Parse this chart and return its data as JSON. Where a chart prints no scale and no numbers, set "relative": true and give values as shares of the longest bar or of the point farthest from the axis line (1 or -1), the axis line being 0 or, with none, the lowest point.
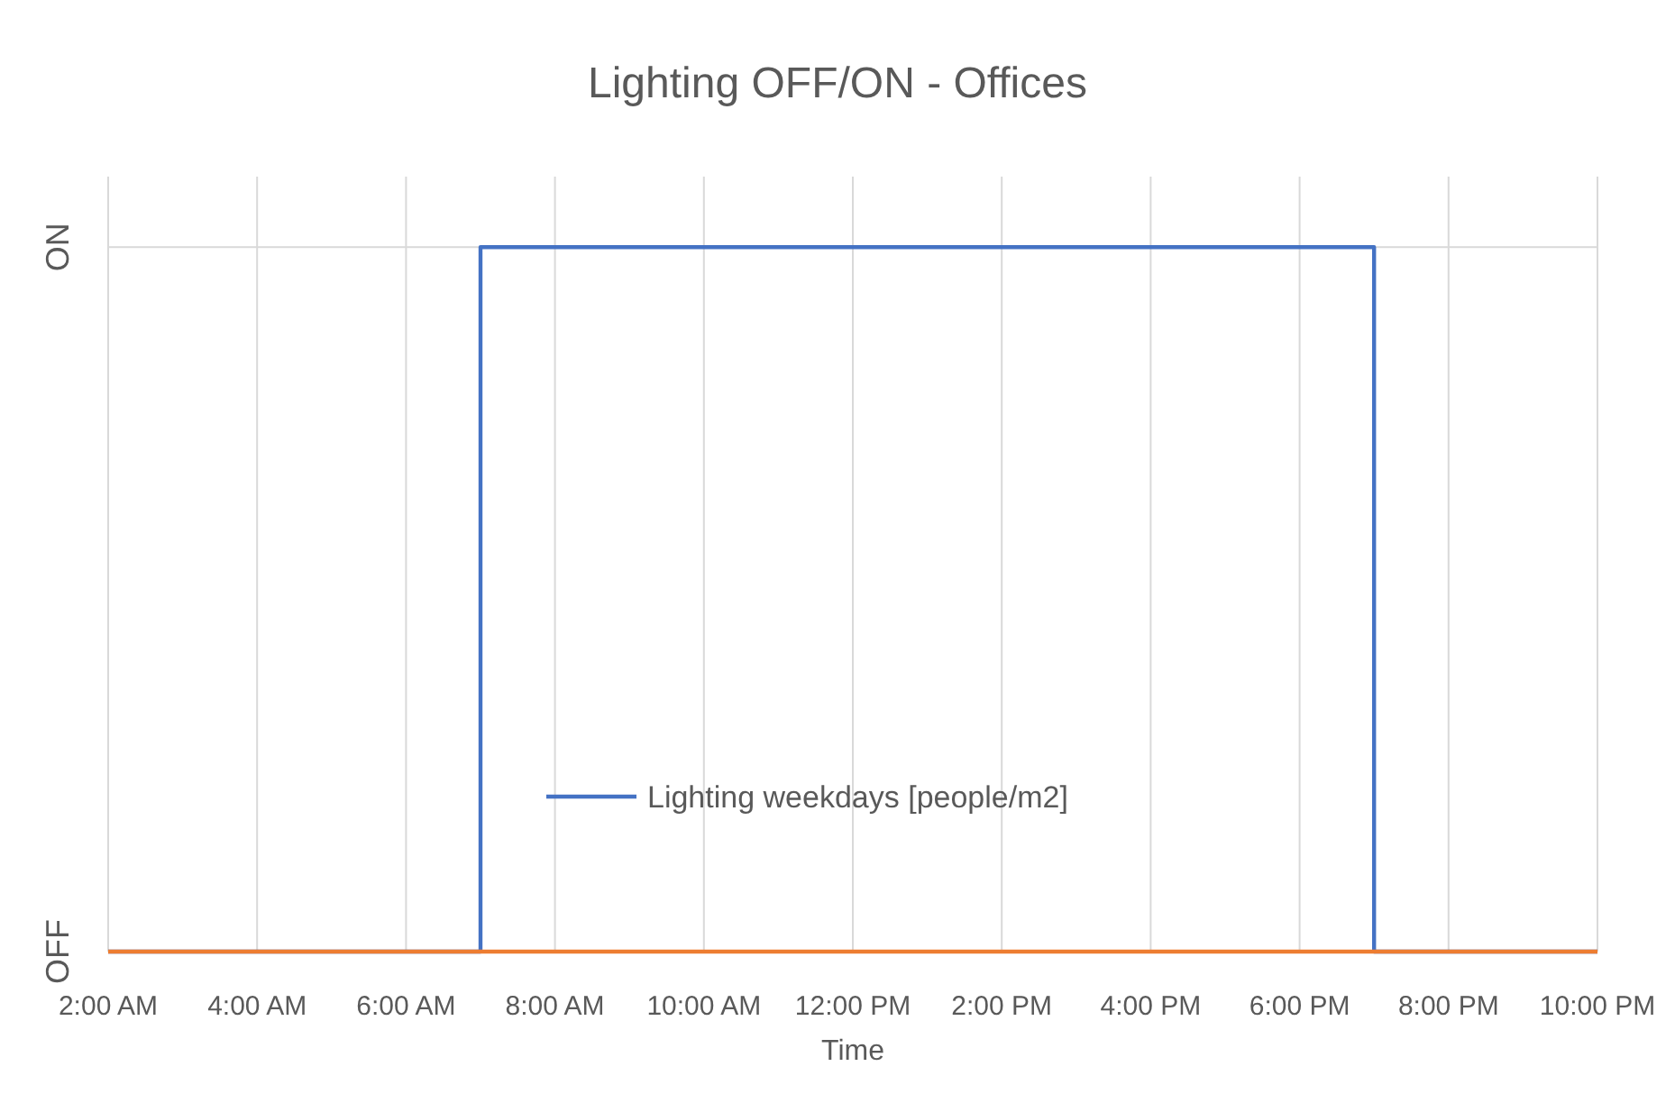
{
  "chart_data": {
    "type": "line",
    "title": "Lighting  OFF/ON - Offices",
    "xlabel": "Time",
    "xlim": [
      2,
      22
    ],
    "xticks": [
      {
        "value": 2,
        "label": "2:00 AM"
      },
      {
        "value": 4,
        "label": "4:00 AM"
      },
      {
        "value": 6,
        "label": "6:00 AM"
      },
      {
        "value": 8,
        "label": "8:00 AM"
      },
      {
        "value": 10,
        "label": "10:00 AM"
      },
      {
        "value": 12,
        "label": "12:00 PM"
      },
      {
        "value": 14,
        "label": "2:00 PM"
      },
      {
        "value": 16,
        "label": "4:00 PM"
      },
      {
        "value": 18,
        "label": "6:00 PM"
      },
      {
        "value": 20,
        "label": "8:00 PM"
      },
      {
        "value": 22,
        "label": "10:00 PM"
      }
    ],
    "relative": true,
    "annotations": [
      "ON",
      "OFF"
    ],
    "grid": "x",
    "legend": "bottom",
    "marker": "none",
    "line_style": "solid",
    "series": [
      {
        "name": "Lighting weekdays [people/m2]",
        "color": "#4472c4",
        "x": [
          2,
          7,
          7,
          19,
          19,
          22
        ],
        "values": [
          0,
          0,
          1,
          1,
          0,
          0
        ]
      },
      {
        "color": "#ed7d31",
        "x": [
          2,
          22
        ],
        "values": [
          0,
          0
        ]
      }
    ]
  }
}
